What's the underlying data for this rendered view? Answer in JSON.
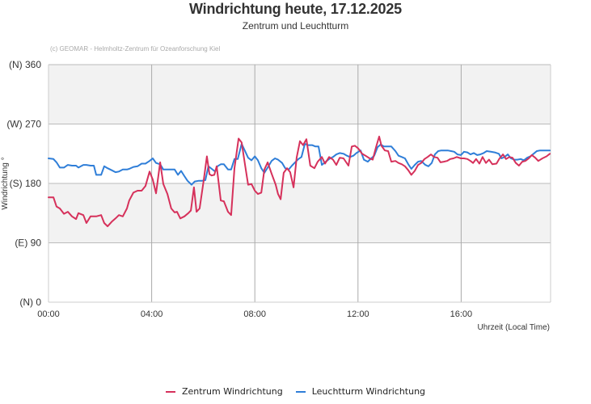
{
  "header": {
    "title": "Windrichtung heute, 17.12.2025",
    "subtitle": "Zentrum und Leuchtturm",
    "credit": "(c) GEOMAR - Helmholtz-Zentrum für Ozeanforschung Kiel"
  },
  "legend": {
    "items": [
      {
        "label": "Zentrum Windrichtung",
        "color": "#d6315b"
      },
      {
        "label": "Leuchtturm Windrichtung",
        "color": "#2f7ed8"
      }
    ]
  },
  "chart_data": {
    "type": "line",
    "title": "Windrichtung heute, 17.12.2025",
    "subtitle": "Zentrum und Leuchtturm",
    "xlabel": "Uhrzeit (Local Time)",
    "ylabel": "Windrichtung °",
    "ylim": [
      0,
      360
    ],
    "xlim_hours": [
      0,
      19.5
    ],
    "x_ticks": [
      "00:00",
      "04:00",
      "08:00",
      "12:00",
      "16:00"
    ],
    "y_ticks": [
      {
        "value": 0,
        "label": "(N) 0"
      },
      {
        "value": 90,
        "label": "(E) 90"
      },
      {
        "value": 180,
        "label": "(S) 180"
      },
      {
        "value": 270,
        "label": "(W) 270"
      },
      {
        "value": 360,
        "label": "(N) 360"
      }
    ],
    "plot_bands": [
      {
        "from": 90,
        "to": 180,
        "color": "#f2f2f2"
      },
      {
        "from": 180,
        "to": 270,
        "color": "#ffffff"
      },
      {
        "from": 270,
        "to": 360,
        "color": "#f2f2f2"
      }
    ],
    "grid": true,
    "legend_position": "bottom",
    "series": [
      {
        "name": "Zentrum Windrichtung",
        "color": "#d6315b",
        "points": [
          [
            0.0,
            159
          ],
          [
            0.19,
            159
          ],
          [
            0.31,
            145
          ],
          [
            0.44,
            142
          ],
          [
            0.6,
            134
          ],
          [
            0.75,
            137
          ],
          [
            0.91,
            130
          ],
          [
            1.07,
            126
          ],
          [
            1.16,
            135
          ],
          [
            1.35,
            132
          ],
          [
            1.47,
            120
          ],
          [
            1.63,
            130
          ],
          [
            1.85,
            130
          ],
          [
            2.04,
            132
          ],
          [
            2.16,
            120
          ],
          [
            2.29,
            115
          ],
          [
            2.45,
            122
          ],
          [
            2.6,
            127
          ],
          [
            2.73,
            132
          ],
          [
            2.88,
            130
          ],
          [
            3.04,
            142
          ],
          [
            3.13,
            154
          ],
          [
            3.29,
            166
          ],
          [
            3.45,
            169
          ],
          [
            3.61,
            169
          ],
          [
            3.76,
            176
          ],
          [
            3.92,
            198
          ],
          [
            4.04,
            186
          ],
          [
            4.17,
            165
          ],
          [
            4.33,
            212
          ],
          [
            4.45,
            179
          ],
          [
            4.61,
            164
          ],
          [
            4.76,
            142
          ],
          [
            4.89,
            136
          ],
          [
            4.98,
            137
          ],
          [
            5.11,
            127
          ],
          [
            5.27,
            130
          ],
          [
            5.42,
            135
          ],
          [
            5.52,
            139
          ],
          [
            5.64,
            174
          ],
          [
            5.74,
            137
          ],
          [
            5.86,
            142
          ],
          [
            6.02,
            185
          ],
          [
            6.14,
            221
          ],
          [
            6.24,
            194
          ],
          [
            6.33,
            192
          ],
          [
            6.43,
            193
          ],
          [
            6.52,
            206
          ],
          [
            6.68,
            154
          ],
          [
            6.8,
            153
          ],
          [
            6.96,
            137
          ],
          [
            7.08,
            132
          ],
          [
            7.21,
            203
          ],
          [
            7.37,
            248
          ],
          [
            7.49,
            242
          ],
          [
            7.62,
            208
          ],
          [
            7.74,
            178
          ],
          [
            7.87,
            179
          ],
          [
            8.0,
            169
          ],
          [
            8.12,
            164
          ],
          [
            8.25,
            166
          ],
          [
            8.37,
            201
          ],
          [
            8.5,
            212
          ],
          [
            8.65,
            195
          ],
          [
            8.81,
            178
          ],
          [
            8.9,
            164
          ],
          [
            9.0,
            156
          ],
          [
            9.12,
            196
          ],
          [
            9.25,
            203
          ],
          [
            9.37,
            197
          ],
          [
            9.5,
            174
          ],
          [
            9.62,
            219
          ],
          [
            9.75,
            244
          ],
          [
            9.87,
            238
          ],
          [
            10.0,
            247
          ],
          [
            10.15,
            207
          ],
          [
            10.31,
            203
          ],
          [
            10.44,
            213
          ],
          [
            10.6,
            220
          ],
          [
            10.72,
            210
          ],
          [
            10.88,
            220
          ],
          [
            11.03,
            216
          ],
          [
            11.16,
            208
          ],
          [
            11.29,
            219
          ],
          [
            11.44,
            218
          ],
          [
            11.63,
            207
          ],
          [
            11.76,
            236
          ],
          [
            11.88,
            237
          ],
          [
            12.01,
            233
          ],
          [
            12.16,
            225
          ],
          [
            12.29,
            222
          ],
          [
            12.45,
            218
          ],
          [
            12.57,
            216
          ],
          [
            12.7,
            235
          ],
          [
            12.82,
            251
          ],
          [
            12.91,
            237
          ],
          [
            13.04,
            230
          ],
          [
            13.17,
            229
          ],
          [
            13.29,
            213
          ],
          [
            13.45,
            214
          ],
          [
            13.57,
            211
          ],
          [
            13.7,
            209
          ],
          [
            13.82,
            206
          ],
          [
            13.95,
            200
          ],
          [
            14.07,
            193
          ],
          [
            14.2,
            199
          ],
          [
            14.33,
            208
          ],
          [
            14.45,
            211
          ],
          [
            14.58,
            217
          ],
          [
            14.7,
            220
          ],
          [
            14.83,
            224
          ],
          [
            14.95,
            220
          ],
          [
            15.08,
            219
          ],
          [
            15.2,
            212
          ],
          [
            15.33,
            213
          ],
          [
            15.45,
            214
          ],
          [
            15.58,
            217
          ],
          [
            15.7,
            218
          ],
          [
            15.83,
            220
          ],
          [
            15.99,
            218
          ],
          [
            16.11,
            218
          ],
          [
            16.24,
            217
          ],
          [
            16.36,
            214
          ],
          [
            16.46,
            211
          ],
          [
            16.58,
            217
          ],
          [
            16.71,
            210
          ],
          [
            16.83,
            220
          ],
          [
            16.96,
            211
          ],
          [
            17.08,
            216
          ],
          [
            17.21,
            209
          ],
          [
            17.37,
            210
          ],
          [
            17.49,
            218
          ],
          [
            17.62,
            224
          ],
          [
            17.74,
            217
          ],
          [
            17.87,
            220
          ],
          [
            17.99,
            219
          ],
          [
            18.12,
            211
          ],
          [
            18.24,
            207
          ],
          [
            18.37,
            213
          ],
          [
            18.49,
            214
          ],
          [
            18.62,
            218
          ],
          [
            18.74,
            223
          ],
          [
            18.87,
            219
          ],
          [
            18.99,
            214
          ],
          [
            19.15,
            218
          ],
          [
            19.31,
            221
          ],
          [
            19.44,
            225
          ]
        ]
      },
      {
        "name": "Leuchtturm Windrichtung",
        "color": "#2f7ed8",
        "points": [
          [
            0.0,
            218
          ],
          [
            0.19,
            217
          ],
          [
            0.31,
            212
          ],
          [
            0.44,
            204
          ],
          [
            0.6,
            204
          ],
          [
            0.75,
            208
          ],
          [
            0.91,
            207
          ],
          [
            1.07,
            207
          ],
          [
            1.16,
            204
          ],
          [
            1.35,
            208
          ],
          [
            1.47,
            208
          ],
          [
            1.63,
            207
          ],
          [
            1.76,
            207
          ],
          [
            1.85,
            193
          ],
          [
            2.04,
            193
          ],
          [
            2.16,
            206
          ],
          [
            2.29,
            203
          ],
          [
            2.45,
            200
          ],
          [
            2.6,
            197
          ],
          [
            2.73,
            198
          ],
          [
            2.88,
            201
          ],
          [
            3.04,
            201
          ],
          [
            3.13,
            202
          ],
          [
            3.29,
            205
          ],
          [
            3.45,
            206
          ],
          [
            3.61,
            210
          ],
          [
            3.76,
            210
          ],
          [
            3.92,
            214
          ],
          [
            4.04,
            218
          ],
          [
            4.17,
            211
          ],
          [
            4.33,
            209
          ],
          [
            4.45,
            201
          ],
          [
            4.61,
            201
          ],
          [
            4.76,
            201
          ],
          [
            4.89,
            201
          ],
          [
            5.02,
            193
          ],
          [
            5.14,
            199
          ],
          [
            5.27,
            191
          ],
          [
            5.39,
            184
          ],
          [
            5.55,
            178
          ],
          [
            5.67,
            183
          ],
          [
            5.83,
            184
          ],
          [
            5.96,
            184
          ],
          [
            6.08,
            185
          ],
          [
            6.2,
            206
          ],
          [
            6.33,
            202
          ],
          [
            6.46,
            198
          ],
          [
            6.55,
            206
          ],
          [
            6.68,
            209
          ],
          [
            6.8,
            209
          ],
          [
            6.96,
            201
          ],
          [
            7.08,
            201
          ],
          [
            7.21,
            217
          ],
          [
            7.34,
            217
          ],
          [
            7.49,
            240
          ],
          [
            7.62,
            229
          ],
          [
            7.74,
            219
          ],
          [
            7.87,
            215
          ],
          [
            8.0,
            221
          ],
          [
            8.12,
            215
          ],
          [
            8.25,
            203
          ],
          [
            8.37,
            196
          ],
          [
            8.5,
            204
          ],
          [
            8.65,
            214
          ],
          [
            8.78,
            218
          ],
          [
            8.9,
            216
          ],
          [
            9.06,
            211
          ],
          [
            9.18,
            203
          ],
          [
            9.31,
            201
          ],
          [
            9.44,
            207
          ],
          [
            9.56,
            212
          ],
          [
            9.69,
            217
          ],
          [
            9.81,
            220
          ],
          [
            9.94,
            240
          ],
          [
            10.06,
            238
          ],
          [
            10.22,
            238
          ],
          [
            10.35,
            236
          ],
          [
            10.47,
            236
          ],
          [
            10.6,
            208
          ],
          [
            10.72,
            212
          ],
          [
            10.88,
            217
          ],
          [
            11.03,
            220
          ],
          [
            11.16,
            224
          ],
          [
            11.29,
            226
          ],
          [
            11.44,
            225
          ],
          [
            11.57,
            222
          ],
          [
            11.69,
            220
          ],
          [
            11.82,
            222
          ],
          [
            11.94,
            226
          ],
          [
            12.1,
            230
          ],
          [
            12.23,
            216
          ],
          [
            12.38,
            213
          ],
          [
            12.51,
            218
          ],
          [
            12.63,
            222
          ],
          [
            12.76,
            235
          ],
          [
            12.88,
            239
          ],
          [
            13.01,
            236
          ],
          [
            13.17,
            236
          ],
          [
            13.29,
            236
          ],
          [
            13.45,
            229
          ],
          [
            13.57,
            222
          ],
          [
            13.7,
            220
          ],
          [
            13.82,
            218
          ],
          [
            13.95,
            209
          ],
          [
            14.07,
            202
          ],
          [
            14.2,
            208
          ],
          [
            14.33,
            213
          ],
          [
            14.45,
            214
          ],
          [
            14.61,
            208
          ],
          [
            14.73,
            206
          ],
          [
            14.86,
            211
          ],
          [
            14.98,
            224
          ],
          [
            15.11,
            229
          ],
          [
            15.23,
            230
          ],
          [
            15.36,
            230
          ],
          [
            15.48,
            230
          ],
          [
            15.61,
            229
          ],
          [
            15.73,
            228
          ],
          [
            15.86,
            224
          ],
          [
            15.99,
            223
          ],
          [
            16.11,
            228
          ],
          [
            16.24,
            227
          ],
          [
            16.36,
            224
          ],
          [
            16.49,
            226
          ],
          [
            16.62,
            223
          ],
          [
            16.74,
            224
          ],
          [
            16.87,
            226
          ],
          [
            16.99,
            229
          ],
          [
            17.15,
            228
          ],
          [
            17.3,
            227
          ],
          [
            17.46,
            225
          ],
          [
            17.56,
            218
          ],
          [
            17.68,
            220
          ],
          [
            17.81,
            224
          ],
          [
            17.93,
            218
          ],
          [
            18.06,
            216
          ],
          [
            18.18,
            216
          ],
          [
            18.31,
            217
          ],
          [
            18.43,
            215
          ],
          [
            18.56,
            219
          ],
          [
            18.68,
            221
          ],
          [
            18.81,
            225
          ],
          [
            18.93,
            229
          ],
          [
            19.06,
            230
          ],
          [
            19.18,
            230
          ],
          [
            19.31,
            230
          ],
          [
            19.44,
            230
          ]
        ]
      }
    ]
  }
}
